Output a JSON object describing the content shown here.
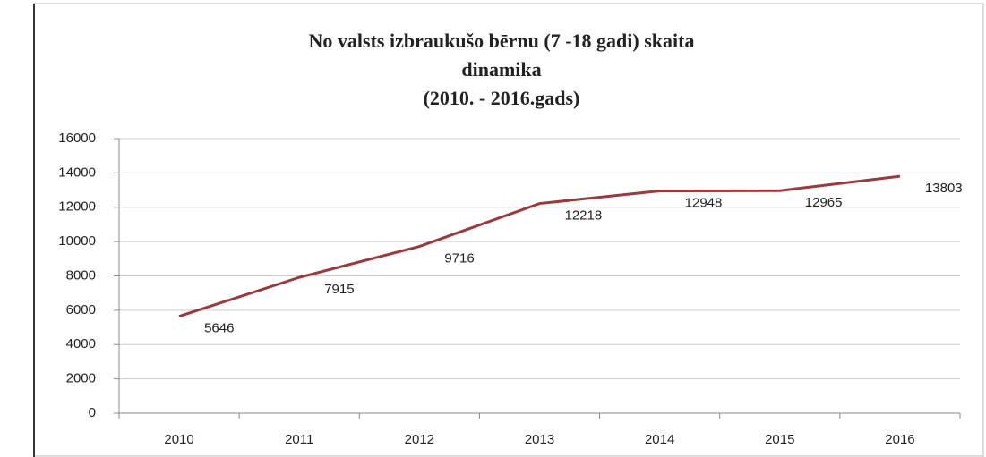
{
  "chart_data": {
    "type": "line",
    "title": [
      "No valsts izbraukušo bērnu (7 -18 gadi) skaita",
      "dinamika",
      "(2010. - 2016.gads)"
    ],
    "categories": [
      "2010",
      "2011",
      "2012",
      "2013",
      "2014",
      "2015",
      "2016"
    ],
    "values": [
      5646,
      7915,
      9716,
      12218,
      12948,
      12965,
      13803
    ],
    "color": "#9b3a3a",
    "ylim": [
      0,
      16000
    ],
    "yticks": [
      0,
      2000,
      4000,
      6000,
      8000,
      10000,
      12000,
      14000,
      16000
    ],
    "grid": true,
    "data_labels": true
  }
}
